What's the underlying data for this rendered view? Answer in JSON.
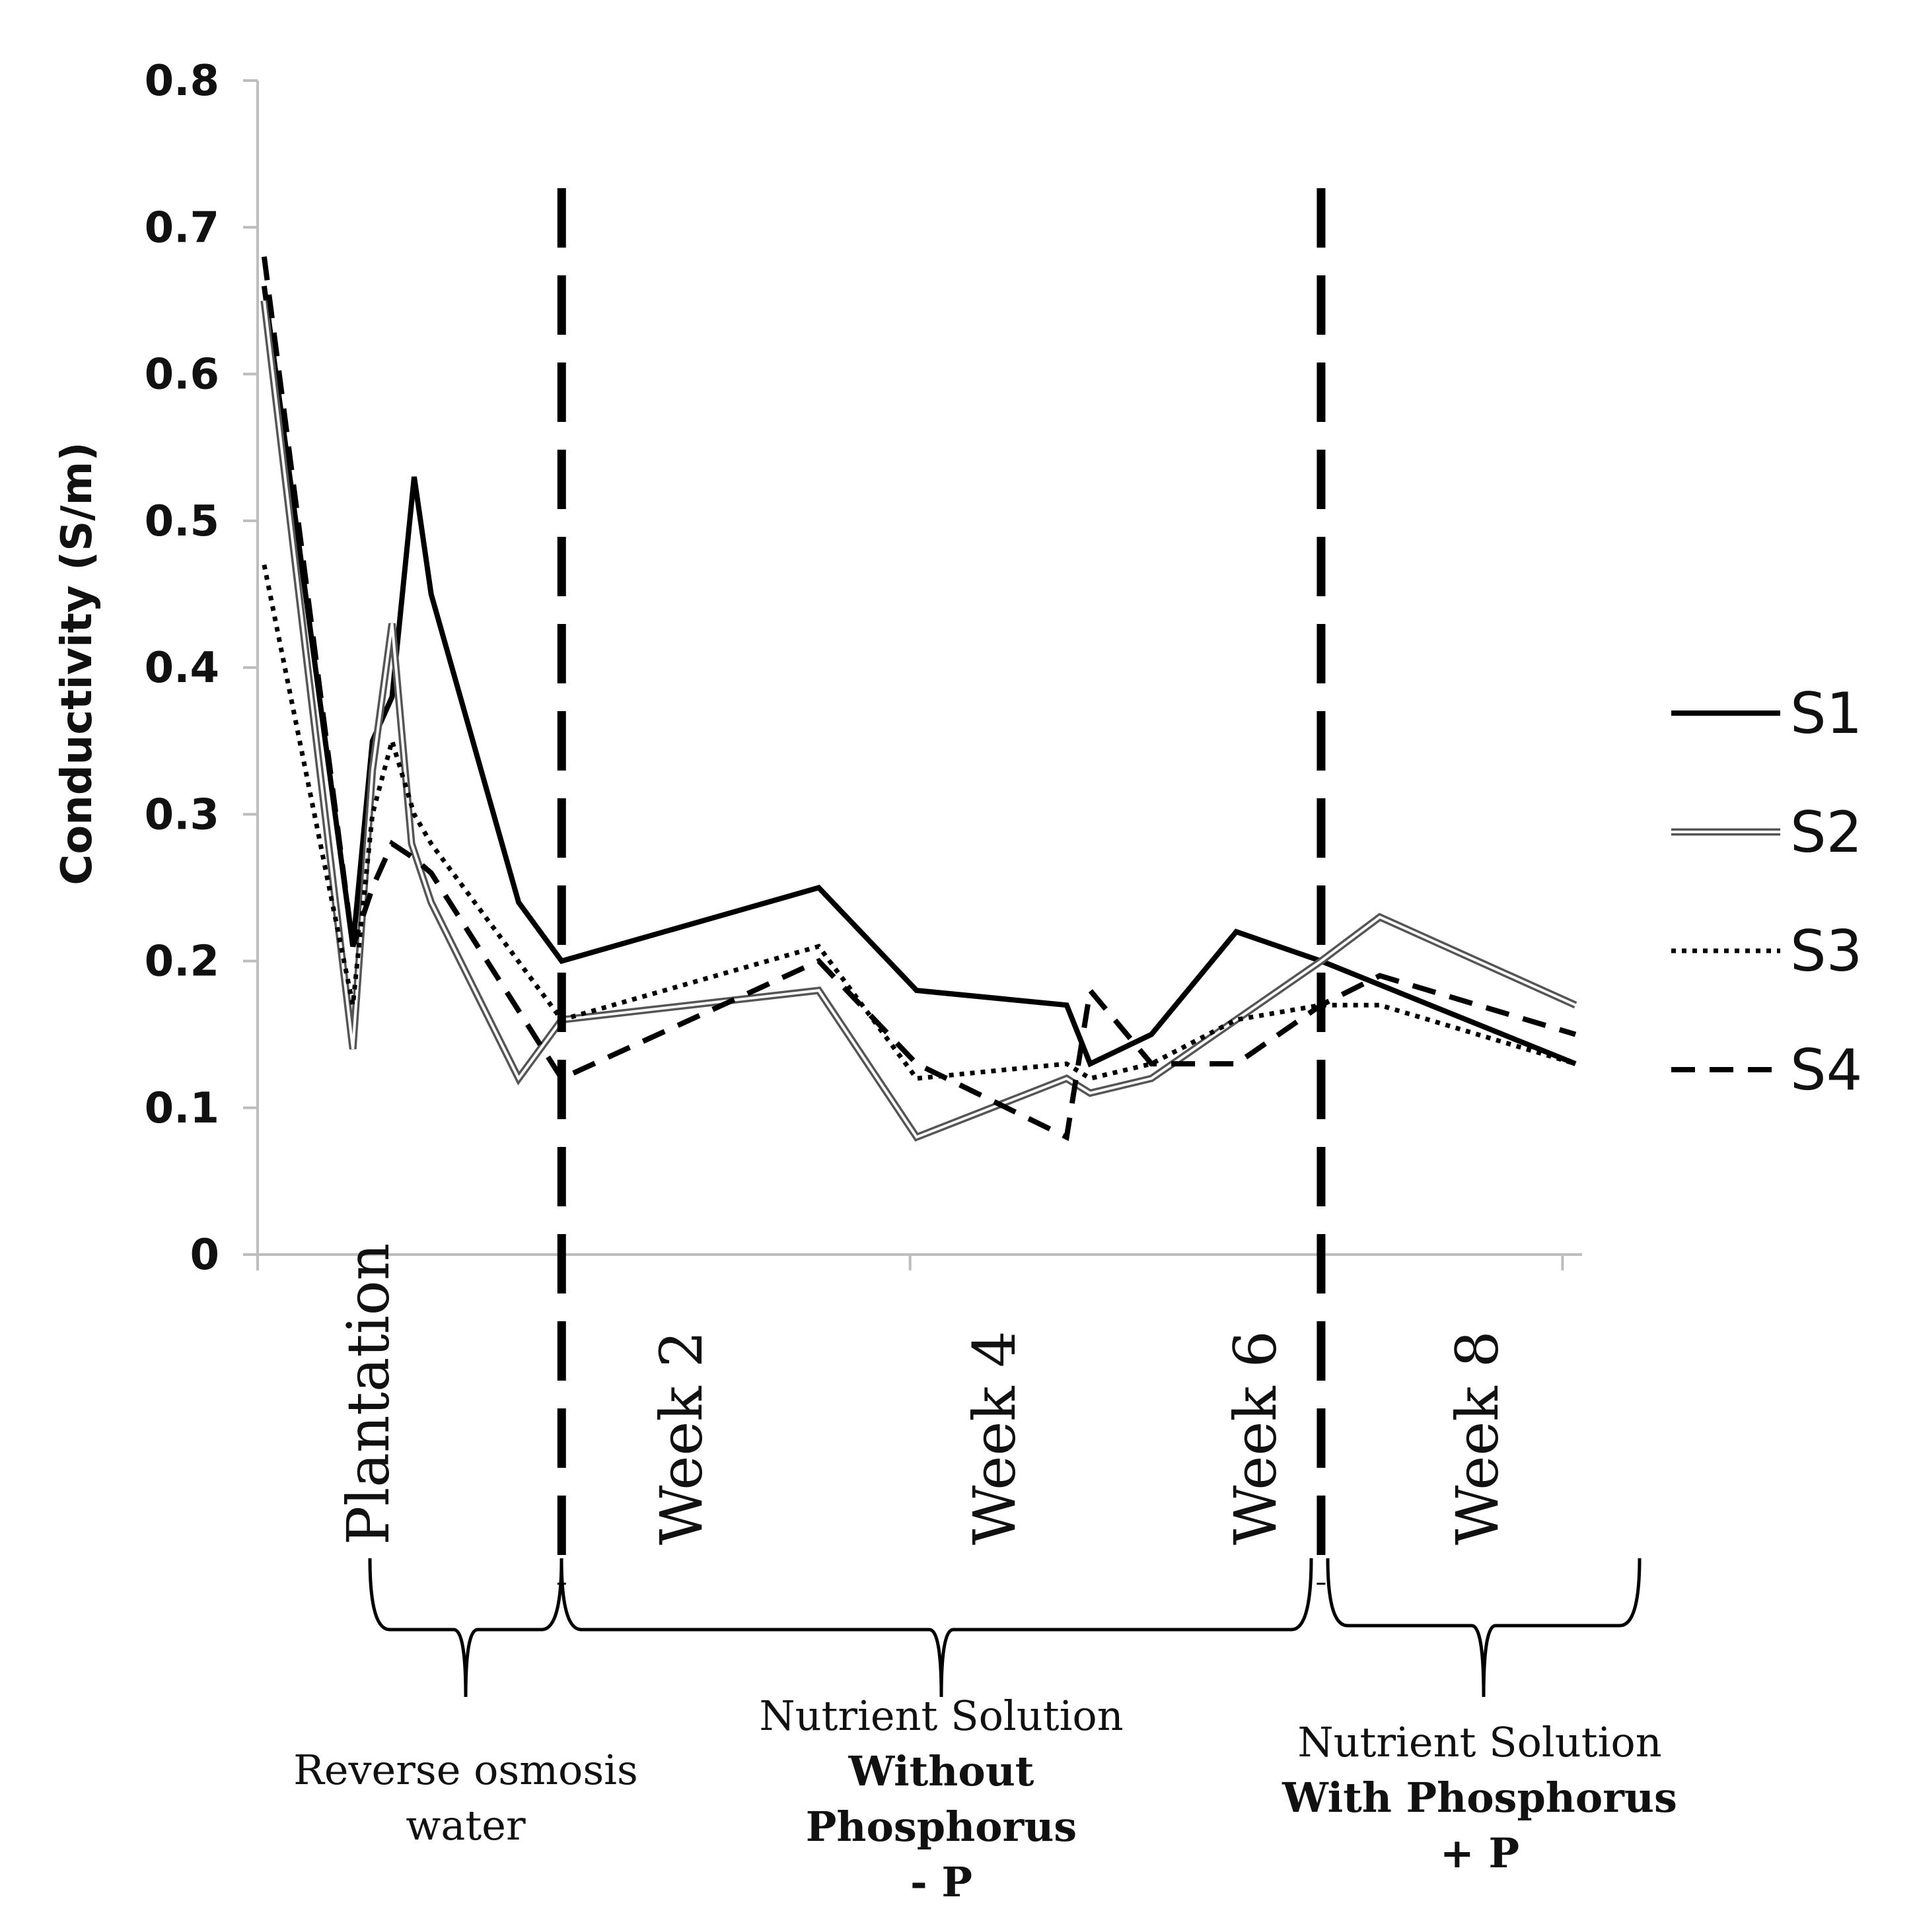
{
  "chart_data": {
    "type": "line",
    "ylabel": "Conductivity (S/m)",
    "ylim": [
      0,
      0.8
    ],
    "yticks": [
      "0",
      "0.1",
      "0.2",
      "0.3",
      "0.4",
      "0.5",
      "0.6",
      "0.7",
      "0.8"
    ],
    "xlim": [
      0,
      10.15
    ],
    "x_category_labels": [
      {
        "x": 0.85,
        "label": "Plantation"
      },
      {
        "x": 3.25,
        "label": "Week 2"
      },
      {
        "x": 5.65,
        "label": "Week 4"
      },
      {
        "x": 7.65,
        "label": "Week 6"
      },
      {
        "x": 9.35,
        "label": "Week 8"
      }
    ],
    "x_ticks": [
      0,
      5,
      10
    ],
    "phase_boundaries": [
      2.33,
      8.15
    ],
    "series": [
      {
        "name": "S1",
        "style": "solid-thick",
        "x": [
          0.05,
          0.73,
          0.88,
          1.03,
          1.2,
          1.33,
          2.0,
          2.33,
          4.3,
          5.05,
          6.2,
          6.38,
          6.85,
          7.5,
          8.15,
          10.1
        ],
        "y": [
          0.66,
          0.21,
          0.35,
          0.38,
          0.53,
          0.45,
          0.24,
          0.2,
          0.25,
          0.18,
          0.17,
          0.13,
          0.15,
          0.22,
          0.2,
          0.13
        ]
      },
      {
        "name": "S2",
        "style": "double",
        "x": [
          0.05,
          0.73,
          0.88,
          1.03,
          1.18,
          1.33,
          2.0,
          2.33,
          4.3,
          5.05,
          6.2,
          6.38,
          6.85,
          7.5,
          8.15,
          8.6,
          10.1
        ],
        "y": [
          0.65,
          0.14,
          0.33,
          0.43,
          0.28,
          0.24,
          0.12,
          0.16,
          0.18,
          0.08,
          0.12,
          0.11,
          0.12,
          0.16,
          0.2,
          0.23,
          0.17
        ]
      },
      {
        "name": "S3",
        "style": "dotted",
        "x": [
          0.05,
          0.73,
          0.88,
          1.03,
          1.2,
          1.33,
          2.33,
          4.3,
          5.05,
          6.2,
          6.38,
          6.85,
          7.5,
          8.15,
          8.6,
          10.1
        ],
        "y": [
          0.47,
          0.17,
          0.3,
          0.35,
          0.3,
          0.28,
          0.16,
          0.21,
          0.12,
          0.13,
          0.12,
          0.13,
          0.16,
          0.17,
          0.17,
          0.13
        ]
      },
      {
        "name": "S4",
        "style": "dashed",
        "x": [
          0.05,
          0.73,
          0.88,
          1.03,
          1.2,
          1.33,
          2.33,
          4.3,
          5.05,
          6.2,
          6.38,
          6.85,
          7.5,
          8.15,
          8.6,
          10.1
        ],
        "y": [
          0.68,
          0.21,
          0.25,
          0.28,
          0.27,
          0.26,
          0.12,
          0.2,
          0.13,
          0.08,
          0.18,
          0.13,
          0.13,
          0.17,
          0.19,
          0.15
        ]
      }
    ],
    "legend": [
      "S1",
      "S2",
      "S3",
      "S4"
    ],
    "legend_position": "right"
  },
  "phases": [
    {
      "lines": [
        "Reverse  osmosis",
        "water"
      ],
      "accent": ""
    },
    {
      "lines": [
        "Nutrient Solution",
        "Without",
        "Phosphorus"
      ],
      "accent": "- P"
    },
    {
      "lines": [
        "Nutrient Solution",
        "With Phosphorus"
      ],
      "accent": "+ P"
    }
  ],
  "colors": {
    "line": "#000000",
    "axis": "#bdbdbd",
    "accent": "#a01818"
  }
}
